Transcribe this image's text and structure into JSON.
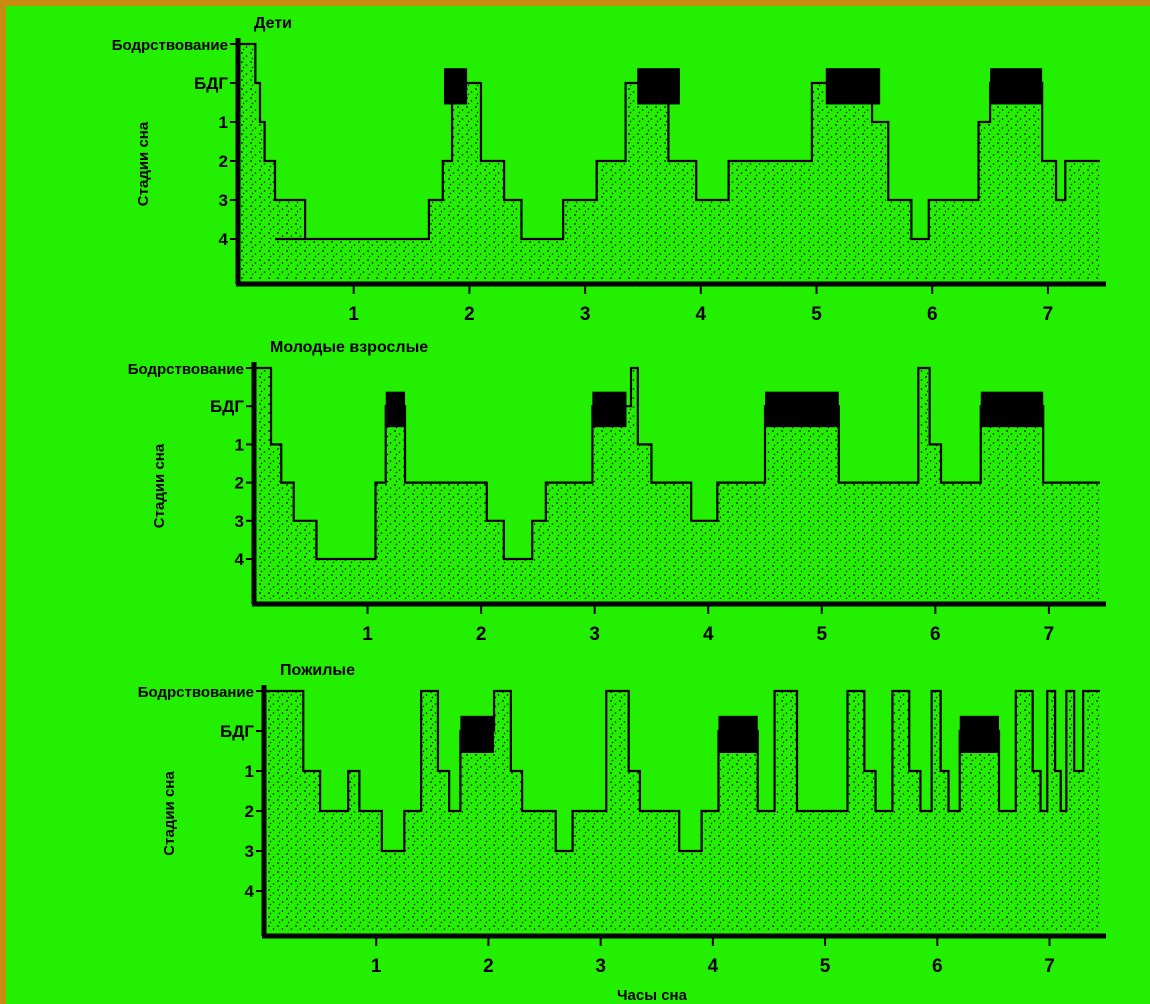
{
  "colors": {
    "background": "#22f000",
    "frame": "#c98a10",
    "ink": "#000000"
  },
  "chart_data": [
    {
      "type": "area",
      "title": "Дети",
      "ylabel": "Стадии сна",
      "xlabel": "",
      "y_categories": [
        "Бодрствование",
        "БДГ",
        "1",
        "2",
        "3",
        "4"
      ],
      "x_ticks": [
        "1",
        "2",
        "3",
        "4",
        "5",
        "6",
        "7"
      ],
      "xlim": [
        0,
        7.45
      ],
      "steps": [
        [
          0,
          0
        ],
        [
          0.15,
          0
        ],
        [
          0.15,
          1
        ],
        [
          0.19,
          1
        ],
        [
          0.19,
          2
        ],
        [
          0.23,
          2
        ],
        [
          0.23,
          3
        ],
        [
          0.32,
          3
        ],
        [
          0.32,
          4
        ],
        [
          0.58,
          4
        ],
        [
          0.58,
          5
        ],
        [
          0.32,
          5
        ],
        [
          0.58,
          5
        ],
        [
          1.65,
          5
        ],
        [
          1.65,
          4
        ],
        [
          1.77,
          4
        ],
        [
          1.77,
          3
        ],
        [
          1.85,
          3
        ],
        [
          1.85,
          1
        ],
        [
          2.1,
          1
        ],
        [
          2.1,
          3
        ],
        [
          2.3,
          3
        ],
        [
          2.3,
          4
        ],
        [
          2.45,
          4
        ],
        [
          2.45,
          5
        ],
        [
          2.81,
          5
        ],
        [
          2.81,
          4
        ],
        [
          3.1,
          4
        ],
        [
          3.1,
          3
        ],
        [
          3.35,
          3
        ],
        [
          3.35,
          1
        ],
        [
          3.72,
          1
        ],
        [
          3.72,
          3
        ],
        [
          3.96,
          3
        ],
        [
          3.96,
          4
        ],
        [
          4.24,
          4
        ],
        [
          4.24,
          3
        ],
        [
          4.96,
          3
        ],
        [
          4.96,
          1
        ],
        [
          5.48,
          1
        ],
        [
          5.48,
          2
        ],
        [
          5.62,
          2
        ],
        [
          5.62,
          4
        ],
        [
          5.82,
          4
        ],
        [
          5.82,
          5
        ],
        [
          5.97,
          5
        ],
        [
          5.97,
          4
        ],
        [
          6.4,
          4
        ],
        [
          6.4,
          2
        ],
        [
          6.5,
          2
        ],
        [
          6.5,
          1
        ],
        [
          6.95,
          1
        ],
        [
          6.95,
          3
        ],
        [
          7.07,
          3
        ],
        [
          7.07,
          4
        ],
        [
          7.15,
          4
        ],
        [
          7.15,
          3
        ],
        [
          7.45,
          3
        ]
      ],
      "rem_periods": [
        [
          1.78,
          1.98
        ],
        [
          3.45,
          3.82
        ],
        [
          5.08,
          5.55
        ],
        [
          6.5,
          6.95
        ]
      ]
    },
    {
      "type": "area",
      "title": "Молодые взрослые",
      "ylabel": "Стадии сна",
      "xlabel": "",
      "y_categories": [
        "Бодрствование",
        "БДГ",
        "1",
        "2",
        "3",
        "4"
      ],
      "x_ticks": [
        "1",
        "2",
        "3",
        "4",
        "5",
        "6",
        "7"
      ],
      "xlim": [
        0,
        7.45
      ],
      "steps": [
        [
          0,
          0
        ],
        [
          0.15,
          0
        ],
        [
          0.15,
          2
        ],
        [
          0.24,
          2
        ],
        [
          0.24,
          3
        ],
        [
          0.35,
          3
        ],
        [
          0.35,
          4
        ],
        [
          0.55,
          4
        ],
        [
          0.55,
          5
        ],
        [
          1.07,
          5
        ],
        [
          1.07,
          3
        ],
        [
          1.16,
          3
        ],
        [
          1.16,
          1
        ],
        [
          1.33,
          1
        ],
        [
          1.33,
          3
        ],
        [
          2.05,
          3
        ],
        [
          2.05,
          4
        ],
        [
          2.2,
          4
        ],
        [
          2.2,
          5
        ],
        [
          2.45,
          5
        ],
        [
          2.45,
          4
        ],
        [
          2.57,
          4
        ],
        [
          2.57,
          3
        ],
        [
          2.98,
          3
        ],
        [
          2.98,
          1
        ],
        [
          3.32,
          1
        ],
        [
          3.32,
          0
        ],
        [
          3.38,
          0
        ],
        [
          3.38,
          2
        ],
        [
          3.5,
          2
        ],
        [
          3.5,
          3
        ],
        [
          3.85,
          3
        ],
        [
          3.85,
          4
        ],
        [
          4.08,
          4
        ],
        [
          4.08,
          3
        ],
        [
          4.5,
          3
        ],
        [
          4.5,
          1
        ],
        [
          5.15,
          1
        ],
        [
          5.15,
          3
        ],
        [
          5.85,
          3
        ],
        [
          5.85,
          0
        ],
        [
          5.95,
          0
        ],
        [
          5.95,
          2
        ],
        [
          6.05,
          2
        ],
        [
          6.05,
          3
        ],
        [
          6.4,
          3
        ],
        [
          6.4,
          1
        ],
        [
          6.95,
          1
        ],
        [
          6.95,
          3
        ],
        [
          7.45,
          3
        ]
      ],
      "rem_periods": [
        [
          1.16,
          1.33
        ],
        [
          2.98,
          3.28
        ],
        [
          4.5,
          5.15
        ],
        [
          6.4,
          6.95
        ]
      ]
    },
    {
      "type": "area",
      "title": "Пожилые",
      "ylabel": "Стадии сна",
      "xlabel": "Часы сна",
      "y_categories": [
        "Бодрствование",
        "БДГ",
        "1",
        "2",
        "3",
        "4"
      ],
      "x_ticks": [
        "1",
        "2",
        "3",
        "4",
        "5",
        "6",
        "7"
      ],
      "xlim": [
        0,
        7.45
      ],
      "steps": [
        [
          0,
          0
        ],
        [
          0.35,
          0
        ],
        [
          0.35,
          2
        ],
        [
          0.5,
          2
        ],
        [
          0.5,
          3
        ],
        [
          0.75,
          3
        ],
        [
          0.75,
          2
        ],
        [
          0.85,
          2
        ],
        [
          0.85,
          3
        ],
        [
          1.05,
          3
        ],
        [
          1.05,
          4
        ],
        [
          1.25,
          4
        ],
        [
          1.25,
          3
        ],
        [
          1.4,
          3
        ],
        [
          1.4,
          0
        ],
        [
          1.55,
          0
        ],
        [
          1.55,
          2
        ],
        [
          1.65,
          2
        ],
        [
          1.65,
          3
        ],
        [
          1.75,
          3
        ],
        [
          1.75,
          1
        ],
        [
          2.05,
          1
        ],
        [
          2.05,
          0
        ],
        [
          2.2,
          0
        ],
        [
          2.2,
          2
        ],
        [
          2.3,
          2
        ],
        [
          2.3,
          3
        ],
        [
          2.6,
          3
        ],
        [
          2.6,
          4
        ],
        [
          2.75,
          4
        ],
        [
          2.75,
          3
        ],
        [
          3.05,
          3
        ],
        [
          3.05,
          0
        ],
        [
          3.25,
          0
        ],
        [
          3.25,
          2
        ],
        [
          3.35,
          2
        ],
        [
          3.35,
          3
        ],
        [
          3.7,
          3
        ],
        [
          3.7,
          4
        ],
        [
          3.9,
          4
        ],
        [
          3.9,
          3
        ],
        [
          4.05,
          3
        ],
        [
          4.05,
          1
        ],
        [
          4.4,
          1
        ],
        [
          4.4,
          3
        ],
        [
          4.55,
          3
        ],
        [
          4.55,
          0
        ],
        [
          4.75,
          0
        ],
        [
          4.75,
          3
        ],
        [
          5.2,
          3
        ],
        [
          5.2,
          0
        ],
        [
          5.35,
          0
        ],
        [
          5.35,
          2
        ],
        [
          5.45,
          2
        ],
        [
          5.45,
          3
        ],
        [
          5.6,
          3
        ],
        [
          5.6,
          0
        ],
        [
          5.75,
          0
        ],
        [
          5.75,
          2
        ],
        [
          5.85,
          2
        ],
        [
          5.85,
          3
        ],
        [
          5.95,
          3
        ],
        [
          5.95,
          0
        ],
        [
          6.03,
          0
        ],
        [
          6.03,
          2
        ],
        [
          6.1,
          2
        ],
        [
          6.1,
          3
        ],
        [
          6.2,
          3
        ],
        [
          6.2,
          1
        ],
        [
          6.55,
          1
        ],
        [
          6.55,
          3
        ],
        [
          6.7,
          3
        ],
        [
          6.7,
          0
        ],
        [
          6.85,
          0
        ],
        [
          6.85,
          2
        ],
        [
          6.92,
          2
        ],
        [
          6.92,
          3
        ],
        [
          6.98,
          3
        ],
        [
          6.98,
          0
        ],
        [
          7.05,
          0
        ],
        [
          7.05,
          2
        ],
        [
          7.1,
          2
        ],
        [
          7.1,
          3
        ],
        [
          7.15,
          3
        ],
        [
          7.15,
          0
        ],
        [
          7.22,
          0
        ],
        [
          7.22,
          2
        ],
        [
          7.3,
          2
        ],
        [
          7.3,
          0
        ],
        [
          7.45,
          0
        ]
      ],
      "rem_periods": [
        [
          1.75,
          2.05
        ],
        [
          4.05,
          4.4
        ],
        [
          6.2,
          6.55
        ]
      ]
    }
  ]
}
